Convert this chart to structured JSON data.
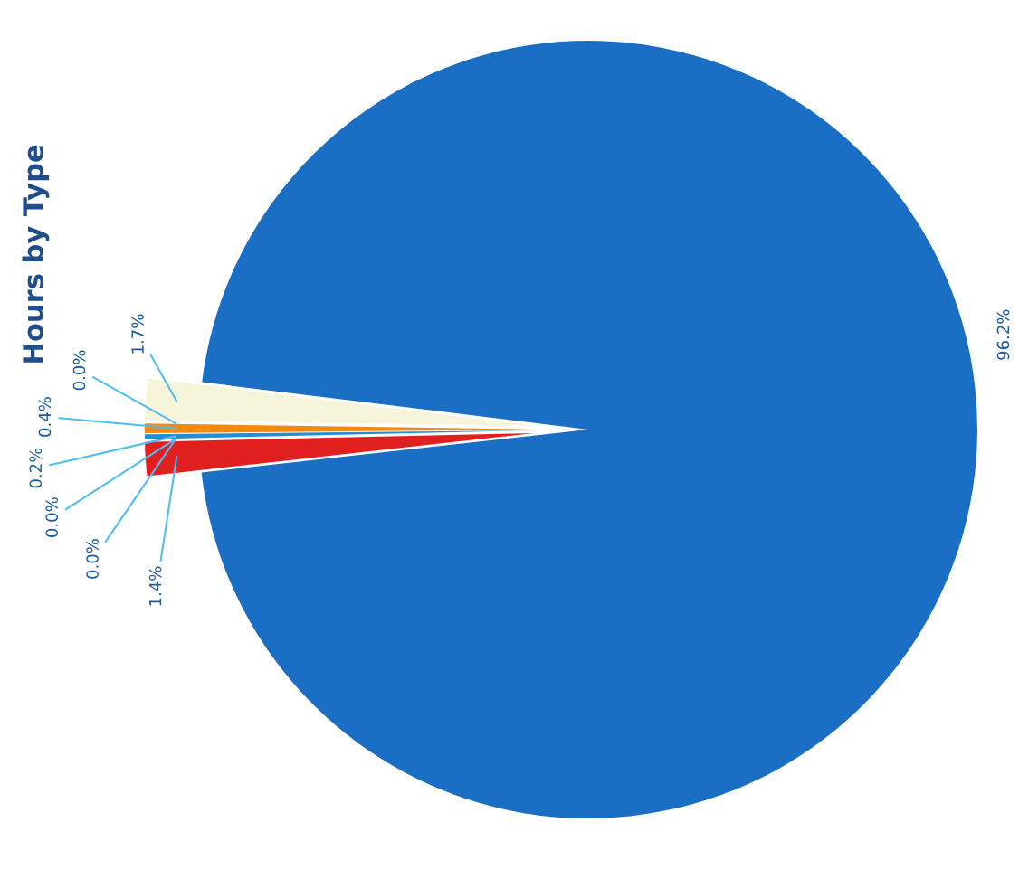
{
  "chart_data": {
    "type": "pie",
    "title": "Hours by Type",
    "categories": [
      null,
      null,
      null,
      null,
      null,
      null,
      null,
      null
    ],
    "values": [
      1.7,
      0.0,
      0.4,
      0.2,
      0.0,
      0.0,
      1.4,
      96.2
    ],
    "colors": [
      "#f7f4dc",
      "#9e9e9e",
      "#f28a12",
      "#1e8fd8",
      "#7fb800",
      "#6a3d9a",
      "#e0201e",
      "#1a6ec4"
    ],
    "value_labels": [
      "1.7%",
      "0.0%",
      "0.4%",
      "0.2%",
      "0.0%",
      "0.0%",
      "1.4%",
      "96.2%"
    ]
  }
}
